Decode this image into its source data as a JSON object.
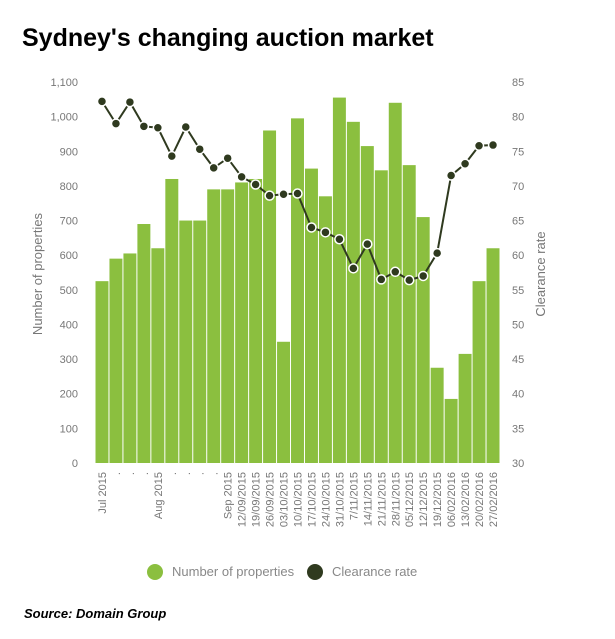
{
  "chart_data": {
    "type": "bar_line",
    "title": "Sydney's changing auction market",
    "y_label": "Number of properties",
    "y2_label": "Clearance rate",
    "source": "Source: Domain Group",
    "categories": [
      "Jul 2015",
      ".",
      ".",
      ".",
      "Aug 2015",
      ".",
      ".",
      ".",
      ".",
      "Sep 2015",
      "12/09/2015",
      "19/09/2015",
      "26/09/2015",
      "03/10/2015",
      "10/10/2015",
      "17/10/2015",
      "24/10/2015",
      "31/10/2015",
      "7/11/2015",
      "14/11/2015",
      "21/11/2015",
      "28/11/2015",
      "05/12/2015",
      "12/12/2015",
      "19/12/2015",
      "06/02/2016",
      "13/02/2016",
      "20/02/2016",
      "27/02/2016"
    ],
    "series": [
      {
        "name": "Number of properties",
        "color": "#8bbf3f",
        "kind": "bar",
        "axis": "y",
        "values": [
          525,
          590,
          605,
          690,
          620,
          820,
          700,
          700,
          790,
          790,
          810,
          820,
          960,
          350,
          995,
          850,
          770,
          1055,
          985,
          915,
          845,
          1040,
          860,
          710,
          275,
          185,
          315,
          525,
          620
        ]
      },
      {
        "name": "Clearance rate",
        "color": "#2f3a1f",
        "kind": "line",
        "axis": "y2",
        "values": [
          82.2,
          79,
          82.1,
          78.6,
          78.4,
          74.3,
          78.5,
          75.3,
          72.6,
          74,
          71.3,
          70.2,
          68.6,
          68.8,
          68.9,
          64,
          63.3,
          62.3,
          58.1,
          61.6,
          56.5,
          57.6,
          56.4,
          57,
          60.3,
          71.5,
          73.2,
          75.8,
          75.9
        ]
      }
    ],
    "ylim": [
      0,
      1100
    ],
    "yticks": [
      0,
      100,
      200,
      300,
      400,
      500,
      600,
      700,
      800,
      900,
      {
        "value": 1000,
        "label": "1,000"
      },
      {
        "value": 1100,
        "label": "1,100"
      }
    ],
    "y2lim": [
      30,
      85
    ],
    "y2ticks": [
      30,
      35,
      40,
      45,
      50,
      55,
      60,
      65,
      70,
      75,
      80,
      85
    ]
  }
}
